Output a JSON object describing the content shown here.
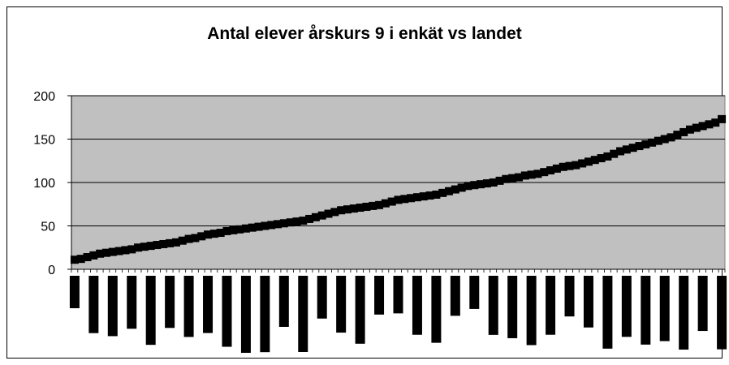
{
  "chart_data": {
    "type": "line",
    "title": "Antal elever årskurs 9 i enkät vs landet",
    "xlabel": "",
    "ylabel": "",
    "ylim": [
      0,
      200
    ],
    "yticks": [
      "0",
      "50",
      "100",
      "150",
      "200"
    ],
    "grid": true,
    "legend": "none",
    "colors": {
      "plot_background": "#c0c0c0",
      "line": "#000080",
      "marker": "#000000",
      "gridline": "#000000"
    },
    "series": [
      {
        "values": [
          11,
          12,
          14,
          16,
          18,
          19,
          20,
          21,
          22,
          23,
          25,
          26,
          27,
          28,
          29,
          30,
          31,
          33,
          35,
          36,
          38,
          40,
          41,
          42,
          44,
          45,
          46,
          47,
          48,
          49,
          50,
          51,
          52,
          53,
          54,
          55,
          56,
          58,
          60,
          62,
          64,
          66,
          68,
          69,
          70,
          71,
          72,
          73,
          74,
          76,
          78,
          80,
          81,
          82,
          83,
          84,
          85,
          86,
          88,
          90,
          92,
          94,
          96,
          97,
          98,
          99,
          100,
          102,
          104,
          105,
          106,
          108,
          109,
          110,
          112,
          114,
          116,
          118,
          119,
          120,
          122,
          124,
          126,
          128,
          130,
          133,
          136,
          138,
          140,
          142,
          144,
          146,
          148,
          150,
          152,
          155,
          158,
          161,
          163,
          165,
          167,
          169,
          173
        ]
      }
    ]
  }
}
